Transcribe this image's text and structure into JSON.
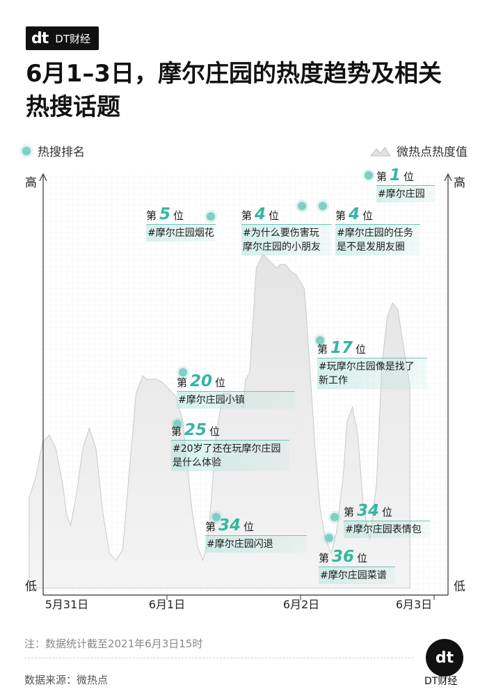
{
  "brand": {
    "logo": "dt",
    "name": "DT财经"
  },
  "title": "6月1–3日，摩尔庄园的热度趋势及相关热搜话题",
  "legend": {
    "left": "热搜排名",
    "right": "微热点热度值"
  },
  "footnote": "注：数据统计截至2021年6月3日15时",
  "source": "数据来源：微热点",
  "corner_brand": {
    "logo": "dt",
    "name": "DT财经"
  },
  "colors": {
    "accent": "#35b5a2",
    "dot": "#7fcfc3",
    "area": "#e6e6e6"
  },
  "chart_data": {
    "type": "area",
    "ylabel_high": "高",
    "ylabel_low": "低",
    "x_ticks": [
      "5月31日",
      "6月1日",
      "6月2日",
      "6月3日"
    ],
    "y_scale": "relative (0 = 低, 100 = 高)",
    "series": [
      {
        "x": [
          0,
          0.05,
          0.1,
          0.15,
          0.2,
          0.25,
          0.28,
          0.31,
          0.35,
          0.4,
          0.45,
          0.5,
          0.55,
          0.6,
          0.65,
          0.7,
          0.75,
          0.8,
          0.85,
          0.88,
          0.92,
          0.96,
          1.0,
          1.05,
          1.1,
          1.15,
          1.18,
          1.22,
          1.26,
          1.3,
          1.33,
          1.36,
          1.4,
          1.45,
          1.5,
          1.55,
          1.6,
          1.62,
          1.65,
          1.7,
          1.75,
          1.8,
          1.85,
          1.88,
          1.92,
          1.96,
          2.0,
          2.03,
          2.06,
          2.1,
          2.14,
          2.18,
          2.22,
          2.26,
          2.3,
          2.35,
          2.38,
          2.42,
          2.46,
          2.5,
          2.55,
          2.6,
          2.64,
          2.68,
          2.72,
          2.76,
          2.8,
          2.85
        ],
        "values": [
          22,
          28,
          38,
          40,
          36,
          26,
          17,
          14,
          22,
          36,
          42,
          36,
          18,
          6,
          4,
          7,
          30,
          52,
          57,
          56,
          56,
          56,
          55,
          53,
          51,
          44,
          32,
          18,
          8,
          4,
          8,
          20,
          40,
          52,
          52,
          50,
          48,
          56,
          58,
          88,
          92,
          90,
          88,
          89,
          89,
          87,
          86,
          84,
          82,
          60,
          36,
          18,
          10,
          6,
          12,
          28,
          44,
          48,
          40,
          20,
          10,
          26,
          60,
          74,
          78,
          76,
          66,
          54
        ]
      }
    ],
    "annotations": [
      {
        "rank_prefix": "第",
        "rank": "1",
        "rank_suffix": "位",
        "topic": [
          "#摩尔庄园"
        ],
        "x": 2.6,
        "y": 95
      },
      {
        "rank_prefix": "第",
        "rank": "5",
        "rank_suffix": "位",
        "topic": [
          "#摩尔庄园烟花"
        ],
        "x": 1.3,
        "y": 86
      },
      {
        "rank_prefix": "第",
        "rank": "4",
        "rank_suffix": "位",
        "topic": [
          "#为什么要伤害玩",
          "摩尔庄园的小朋友"
        ],
        "x": 1.96,
        "y": 88
      },
      {
        "rank_prefix": "第",
        "rank": "4",
        "rank_suffix": "位",
        "topic": [
          "#摩尔庄园的任务",
          "是不是发朋友圈"
        ],
        "x": 2.12,
        "y": 88
      },
      {
        "rank_prefix": "第",
        "rank": "17",
        "rank_suffix": "位",
        "topic": [
          "#玩摩尔庄园像是找了",
          "新工作"
        ],
        "x": 2.1,
        "y": 57
      },
      {
        "rank_prefix": "第",
        "rank": "20",
        "rank_suffix": "位",
        "topic": [
          "#摩尔庄园小镇"
        ],
        "x": 1.06,
        "y": 48
      },
      {
        "rank_prefix": "第",
        "rank": "25",
        "rank_suffix": "位",
        "topic": [
          "#20岁了还在玩摩尔庄园",
          "是什么体验"
        ],
        "x": 1.02,
        "y": 36
      },
      {
        "rank_prefix": "第",
        "rank": "34",
        "rank_suffix": "位",
        "topic": [
          "#摩尔庄园闪退"
        ],
        "x": 1.34,
        "y": 17
      },
      {
        "rank_prefix": "第",
        "rank": "34",
        "rank_suffix": "位",
        "topic": [
          "#摩尔庄园表情包"
        ],
        "x": 2.2,
        "y": 17
      },
      {
        "rank_prefix": "第",
        "rank": "36",
        "rank_suffix": "位",
        "topic": [
          "#摩尔庄园菜谱"
        ],
        "x": 2.18,
        "y": 10
      }
    ]
  }
}
